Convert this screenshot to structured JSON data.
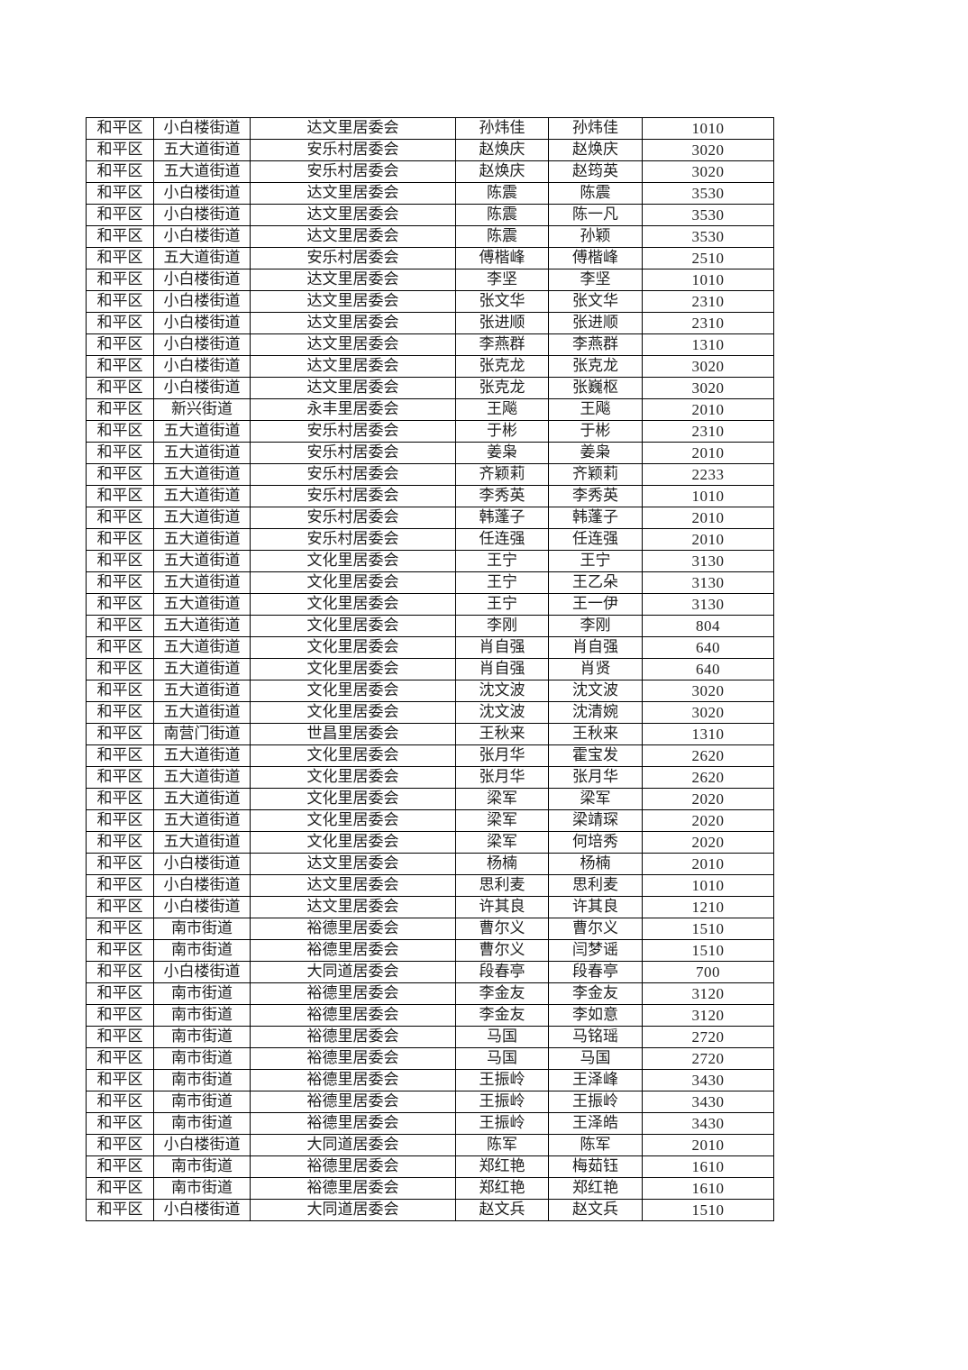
{
  "document": {
    "kind": "resident-roster-table",
    "text_color": "#1f1f1f",
    "border_color": "#000000",
    "background_color": "#ffffff"
  },
  "table": {
    "columns": [
      "district",
      "street",
      "committee",
      "name_primary",
      "name_secondary",
      "amount"
    ],
    "rows": [
      [
        "和平区",
        "小白楼街道",
        "达文里居委会",
        "孙炜佳",
        "孙炜佳",
        "1010"
      ],
      [
        "和平区",
        "五大道街道",
        "安乐村居委会",
        "赵焕庆",
        "赵焕庆",
        "3020"
      ],
      [
        "和平区",
        "五大道街道",
        "安乐村居委会",
        "赵焕庆",
        "赵筠英",
        "3020"
      ],
      [
        "和平区",
        "小白楼街道",
        "达文里居委会",
        "陈震",
        "陈震",
        "3530"
      ],
      [
        "和平区",
        "小白楼街道",
        "达文里居委会",
        "陈震",
        "陈一凡",
        "3530"
      ],
      [
        "和平区",
        "小白楼街道",
        "达文里居委会",
        "陈震",
        "孙颖",
        "3530"
      ],
      [
        "和平区",
        "五大道街道",
        "安乐村居委会",
        "傅楷峰",
        "傅楷峰",
        "2510"
      ],
      [
        "和平区",
        "小白楼街道",
        "达文里居委会",
        "李坚",
        "李坚",
        "1010"
      ],
      [
        "和平区",
        "小白楼街道",
        "达文里居委会",
        "张文华",
        "张文华",
        "2310"
      ],
      [
        "和平区",
        "小白楼街道",
        "达文里居委会",
        "张进顺",
        "张进顺",
        "2310"
      ],
      [
        "和平区",
        "小白楼街道",
        "达文里居委会",
        "李燕群",
        "李燕群",
        "1310"
      ],
      [
        "和平区",
        "小白楼街道",
        "达文里居委会",
        "张克龙",
        "张克龙",
        "3020"
      ],
      [
        "和平区",
        "小白楼街道",
        "达文里居委会",
        "张克龙",
        "张巍枢",
        "3020"
      ],
      [
        "和平区",
        "新兴街道",
        "永丰里居委会",
        "王飚",
        "王飚",
        "2010"
      ],
      [
        "和平区",
        "五大道街道",
        "安乐村居委会",
        "于彬",
        "于彬",
        "2310"
      ],
      [
        "和平区",
        "五大道街道",
        "安乐村居委会",
        "姜枭",
        "姜枭",
        "2010"
      ],
      [
        "和平区",
        "五大道街道",
        "安乐村居委会",
        "齐颖莉",
        "齐颖莉",
        "2233"
      ],
      [
        "和平区",
        "五大道街道",
        "安乐村居委会",
        "李秀英",
        "李秀英",
        "1010"
      ],
      [
        "和平区",
        "五大道街道",
        "安乐村居委会",
        "韩蓬子",
        "韩蓬子",
        "2010"
      ],
      [
        "和平区",
        "五大道街道",
        "安乐村居委会",
        "任连强",
        "任连强",
        "2010"
      ],
      [
        "和平区",
        "五大道街道",
        "文化里居委会",
        "王宁",
        "王宁",
        "3130"
      ],
      [
        "和平区",
        "五大道街道",
        "文化里居委会",
        "王宁",
        "王乙朵",
        "3130"
      ],
      [
        "和平区",
        "五大道街道",
        "文化里居委会",
        "王宁",
        "王一伊",
        "3130"
      ],
      [
        "和平区",
        "五大道街道",
        "文化里居委会",
        "李刚",
        "李刚",
        "804"
      ],
      [
        "和平区",
        "五大道街道",
        "文化里居委会",
        "肖自强",
        "肖自强",
        "640"
      ],
      [
        "和平区",
        "五大道街道",
        "文化里居委会",
        "肖自强",
        "肖贤",
        "640"
      ],
      [
        "和平区",
        "五大道街道",
        "文化里居委会",
        "沈文波",
        "沈文波",
        "3020"
      ],
      [
        "和平区",
        "五大道街道",
        "文化里居委会",
        "沈文波",
        "沈清婉",
        "3020"
      ],
      [
        "和平区",
        "南营门街道",
        "世昌里居委会",
        "王秋来",
        "王秋来",
        "1310"
      ],
      [
        "和平区",
        "五大道街道",
        "文化里居委会",
        "张月华",
        "霍宝发",
        "2620"
      ],
      [
        "和平区",
        "五大道街道",
        "文化里居委会",
        "张月华",
        "张月华",
        "2620"
      ],
      [
        "和平区",
        "五大道街道",
        "文化里居委会",
        "梁军",
        "梁军",
        "2020"
      ],
      [
        "和平区",
        "五大道街道",
        "文化里居委会",
        "梁军",
        "梁靖琛",
        "2020"
      ],
      [
        "和平区",
        "五大道街道",
        "文化里居委会",
        "梁军",
        "何培秀",
        "2020"
      ],
      [
        "和平区",
        "小白楼街道",
        "达文里居委会",
        "杨楠",
        "杨楠",
        "2010"
      ],
      [
        "和平区",
        "小白楼街道",
        "达文里居委会",
        "思利麦",
        "思利麦",
        "1010"
      ],
      [
        "和平区",
        "小白楼街道",
        "达文里居委会",
        "许其良",
        "许其良",
        "1210"
      ],
      [
        "和平区",
        "南市街道",
        "裕德里居委会",
        "曹尔义",
        "曹尔义",
        "1510"
      ],
      [
        "和平区",
        "南市街道",
        "裕德里居委会",
        "曹尔义",
        "闫梦谣",
        "1510"
      ],
      [
        "和平区",
        "小白楼街道",
        "大同道居委会",
        "段春亭",
        "段春亭",
        "700"
      ],
      [
        "和平区",
        "南市街道",
        "裕德里居委会",
        "李金友",
        "李金友",
        "3120"
      ],
      [
        "和平区",
        "南市街道",
        "裕德里居委会",
        "李金友",
        "李如意",
        "3120"
      ],
      [
        "和平区",
        "南市街道",
        "裕德里居委会",
        "马国",
        "马铭瑶",
        "2720"
      ],
      [
        "和平区",
        "南市街道",
        "裕德里居委会",
        "马国",
        "马国",
        "2720"
      ],
      [
        "和平区",
        "南市街道",
        "裕德里居委会",
        "王振岭",
        "王泽峰",
        "3430"
      ],
      [
        "和平区",
        "南市街道",
        "裕德里居委会",
        "王振岭",
        "王振岭",
        "3430"
      ],
      [
        "和平区",
        "南市街道",
        "裕德里居委会",
        "王振岭",
        "王泽皓",
        "3430"
      ],
      [
        "和平区",
        "小白楼街道",
        "大同道居委会",
        "陈军",
        "陈军",
        "2010"
      ],
      [
        "和平区",
        "南市街道",
        "裕德里居委会",
        "郑红艳",
        "梅茹钰",
        "1610"
      ],
      [
        "和平区",
        "南市街道",
        "裕德里居委会",
        "郑红艳",
        "郑红艳",
        "1610"
      ],
      [
        "和平区",
        "小白楼街道",
        "大同道居委会",
        "赵文兵",
        "赵文兵",
        "1510"
      ]
    ]
  }
}
